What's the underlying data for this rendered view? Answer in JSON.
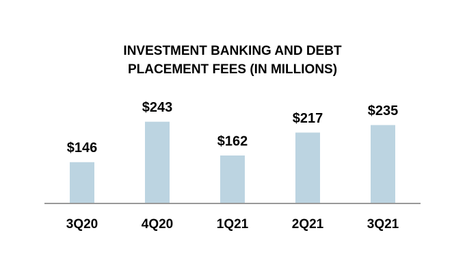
{
  "chart_data": {
    "type": "bar",
    "title": [
      "INVESTMENT BANKING AND DEBT",
      "PLACEMENT FEES (IN MILLIONS)"
    ],
    "categories": [
      "3Q20",
      "4Q20",
      "1Q21",
      "2Q21",
      "3Q21"
    ],
    "values": [
      146,
      243,
      162,
      217,
      235
    ],
    "value_labels": [
      "$146",
      "$243",
      "$162",
      "$217",
      "$235"
    ],
    "color": "#bcd4e1",
    "ylim": [
      47,
      300
    ]
  }
}
